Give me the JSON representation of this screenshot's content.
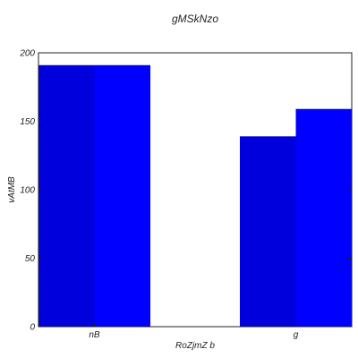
{
  "chart_data": {
    "type": "bar",
    "title": "gMSkNzo",
    "xlabel": "RoZjmZ b",
    "ylabel": "vAtMB",
    "categories": [
      "nB",
      "g"
    ],
    "series": [
      {
        "values": [
          191,
          139
        ],
        "color": "#0000dd"
      },
      {
        "values": [
          191,
          159
        ],
        "color": "#0000ff"
      }
    ],
    "ylim": [
      0,
      200
    ],
    "yticks": [
      0,
      50,
      100,
      150,
      200
    ],
    "grid": false,
    "legend": false
  }
}
